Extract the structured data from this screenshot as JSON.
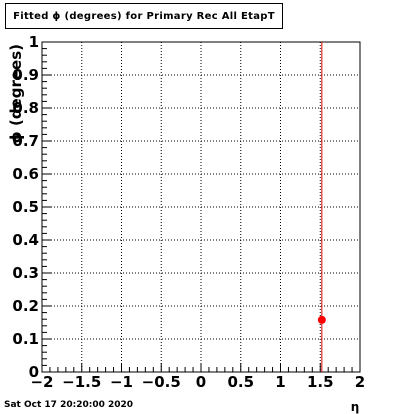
{
  "chart_data": {
    "type": "scatter",
    "title": "Fitted ϕ (degrees) for Primary Rec All EtapT",
    "xlabel": "η",
    "ylabel": "ϕ (degrees)",
    "xlim": [
      -2,
      2
    ],
    "ylim": [
      0,
      1
    ],
    "xticks": [
      "−2",
      "−1.5",
      "−1",
      "−0.5",
      "0",
      "0.5",
      "1",
      "1.5",
      "2"
    ],
    "yticks": [
      "0",
      "0.1",
      "0.2",
      "0.3",
      "0.4",
      "0.5",
      "0.6",
      "0.7",
      "0.8",
      "0.9",
      "1"
    ],
    "grid": true,
    "points": [
      {
        "x": 1.52,
        "y": 0.158
      }
    ],
    "vertical_line": {
      "x": 1.52
    },
    "colors": {
      "marker": "#ff0000",
      "line": "#dd0000",
      "grid": "#000000"
    }
  },
  "footer": {
    "timestamp": "Sat Oct 17 20:20:00 2020"
  }
}
